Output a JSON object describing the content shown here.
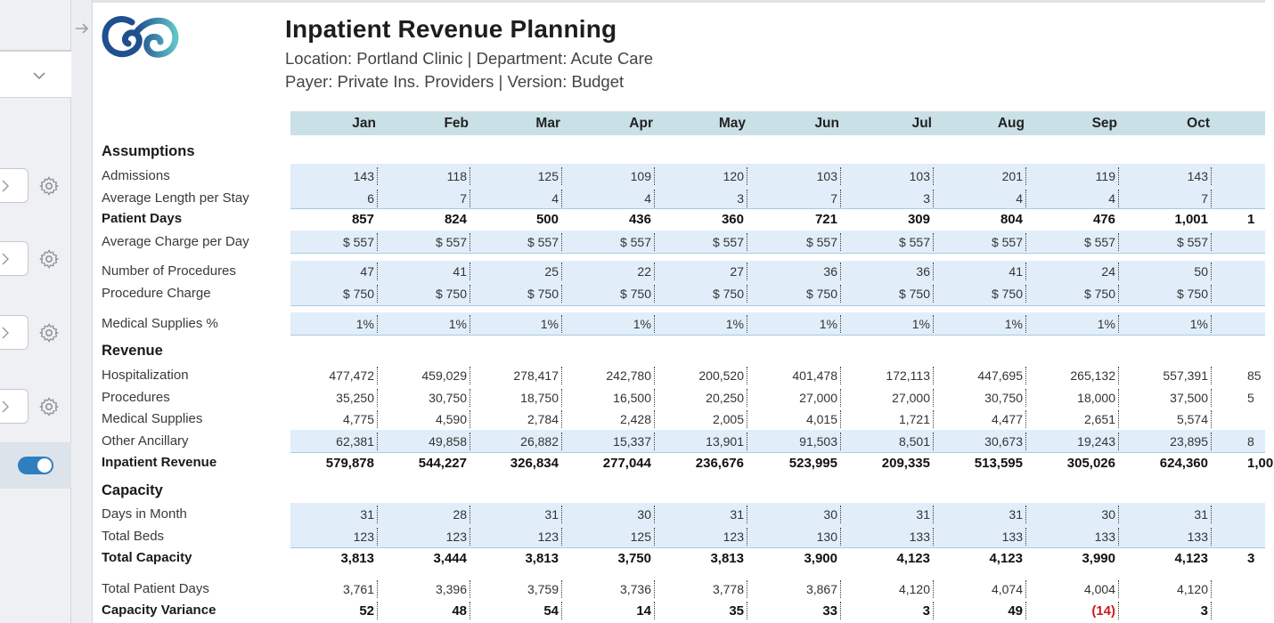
{
  "header": {
    "title": "Inpatient Revenue Planning",
    "subtitle1": "Location: Portland Clinic | Department: Acute Care",
    "subtitle2": "Payer: Private Ins. Providers | Version: Budget"
  },
  "sidebar": {
    "toggle_on": true,
    "accent_color": "#2e7fc0"
  },
  "months": [
    "Jan",
    "Feb",
    "Mar",
    "Apr",
    "May",
    "Jun",
    "Jul",
    "Aug",
    "Sep",
    "Oct"
  ],
  "sections": {
    "assumptions": "Assumptions",
    "revenue": "Revenue",
    "capacity": "Capacity"
  },
  "rows": {
    "admissions": {
      "label": "Admissions",
      "values": [
        "143",
        "118",
        "125",
        "109",
        "120",
        "103",
        "103",
        "201",
        "119",
        "143"
      ]
    },
    "avg_los": {
      "label": "Average Length per Stay",
      "values": [
        "6",
        "7",
        "4",
        "4",
        "3",
        "7",
        "3",
        "4",
        "4",
        "7"
      ]
    },
    "patient_days": {
      "label": "Patient Days",
      "values": [
        "857",
        "824",
        "500",
        "436",
        "360",
        "721",
        "309",
        "804",
        "476",
        "1,001"
      ],
      "overflow": "1"
    },
    "avg_charge": {
      "label": "Average Charge per Day",
      "values": [
        "$ 557",
        "$ 557",
        "$ 557",
        "$ 557",
        "$ 557",
        "$ 557",
        "$ 557",
        "$ 557",
        "$ 557",
        "$ 557"
      ]
    },
    "num_procedures": {
      "label": "Number of Procedures",
      "values": [
        "47",
        "41",
        "25",
        "22",
        "27",
        "36",
        "36",
        "41",
        "24",
        "50"
      ]
    },
    "procedure_charge": {
      "label": "Procedure Charge",
      "values": [
        "$ 750",
        "$ 750",
        "$ 750",
        "$ 750",
        "$ 750",
        "$ 750",
        "$ 750",
        "$ 750",
        "$ 750",
        "$ 750"
      ]
    },
    "med_supplies_pct": {
      "label": "Medical Supplies %",
      "values": [
        "1%",
        "1%",
        "1%",
        "1%",
        "1%",
        "1%",
        "1%",
        "1%",
        "1%",
        "1%"
      ]
    },
    "hospitalization": {
      "label": "Hospitalization",
      "values": [
        "477,472",
        "459,029",
        "278,417",
        "242,780",
        "200,520",
        "401,478",
        "172,113",
        "447,695",
        "265,132",
        "557,391"
      ],
      "overflow": "85"
    },
    "procedures": {
      "label": "Procedures",
      "values": [
        "35,250",
        "30,750",
        "18,750",
        "16,500",
        "20,250",
        "27,000",
        "27,000",
        "30,750",
        "18,000",
        "37,500"
      ],
      "overflow": "5"
    },
    "medical_supplies": {
      "label": "Medical Supplies",
      "values": [
        "4,775",
        "4,590",
        "2,784",
        "2,428",
        "2,005",
        "4,015",
        "1,721",
        "4,477",
        "2,651",
        "5,574"
      ]
    },
    "other_ancillary": {
      "label": "Other Ancillary",
      "values": [
        "62,381",
        "49,858",
        "26,882",
        "15,337",
        "13,901",
        "91,503",
        "8,501",
        "30,673",
        "19,243",
        "23,895"
      ],
      "overflow": "8"
    },
    "inpatient_revenue": {
      "label": "Inpatient Revenue",
      "values": [
        "579,878",
        "544,227",
        "326,834",
        "277,044",
        "236,676",
        "523,995",
        "209,335",
        "513,595",
        "305,026",
        "624,360"
      ],
      "overflow": "1,00"
    },
    "days_in_month": {
      "label": "Days in Month",
      "values": [
        "31",
        "28",
        "31",
        "30",
        "31",
        "30",
        "31",
        "31",
        "30",
        "31"
      ]
    },
    "total_beds": {
      "label": "Total Beds",
      "values": [
        "123",
        "123",
        "123",
        "125",
        "123",
        "130",
        "133",
        "133",
        "133",
        "133"
      ]
    },
    "total_capacity": {
      "label": "Total Capacity",
      "values": [
        "3,813",
        "3,444",
        "3,813",
        "3,750",
        "3,813",
        "3,900",
        "4,123",
        "4,123",
        "3,990",
        "4,123"
      ],
      "overflow": "3"
    },
    "total_patient_days": {
      "label": "Total Patient Days",
      "values": [
        "3,761",
        "3,396",
        "3,759",
        "3,736",
        "3,778",
        "3,867",
        "4,120",
        "4,074",
        "4,004",
        "4,120"
      ]
    },
    "capacity_variance": {
      "label": "Capacity Variance",
      "values": [
        "52",
        "48",
        "54",
        "14",
        "35",
        "33",
        "3",
        "49",
        "(14)",
        "3"
      ]
    }
  },
  "colors": {
    "header_band": "#c9e0e6",
    "input_band": "#e1eefa",
    "negative": "#d0191b",
    "logo_dark": "#1f4f8f",
    "logo_light": "#5fc3c7"
  }
}
